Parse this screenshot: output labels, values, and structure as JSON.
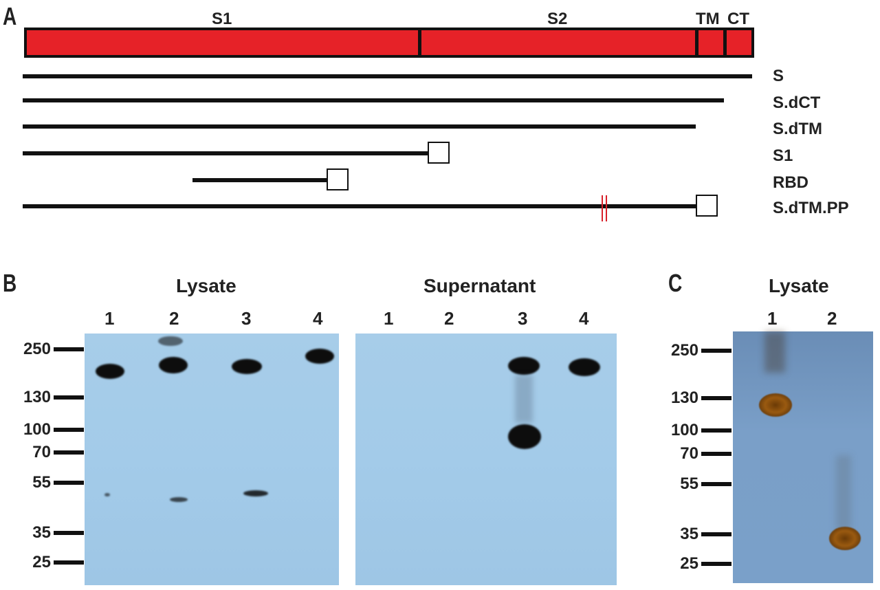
{
  "panel_a": {
    "letter": "A",
    "domains": {
      "s1": "S1",
      "s2": "S2",
      "tm": "TM",
      "ct": "CT"
    },
    "constructs": [
      {
        "name": "S"
      },
      {
        "name": "S.dCT"
      },
      {
        "name": "S.dTM"
      },
      {
        "name": "S1"
      },
      {
        "name": "RBD"
      },
      {
        "name": "S.dTM.PP"
      }
    ],
    "colors": {
      "protein_bar": "#e62228",
      "mutation_marks": "#d8202a"
    }
  },
  "panel_b": {
    "letter": "B",
    "lysate": {
      "title": "Lysate",
      "lanes": [
        "1",
        "2",
        "3",
        "4"
      ]
    },
    "supernatant": {
      "title": "Supernatant",
      "lanes": [
        "1",
        "2",
        "3",
        "4"
      ]
    },
    "markers": [
      "250",
      "130",
      "100",
      "70",
      "55",
      "35",
      "25"
    ]
  },
  "panel_c": {
    "letter": "C",
    "lysate": {
      "title": "Lysate",
      "lanes": [
        "1",
        "2"
      ]
    },
    "markers": [
      "250",
      "130",
      "100",
      "70",
      "55",
      "35",
      "25"
    ]
  }
}
